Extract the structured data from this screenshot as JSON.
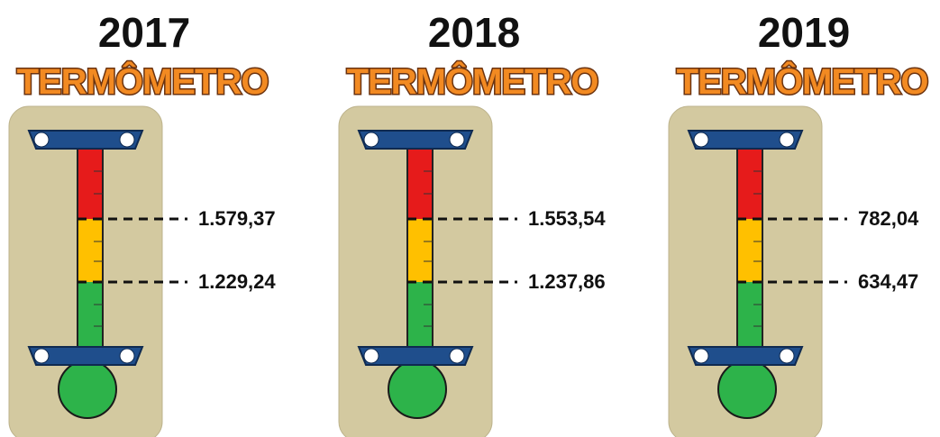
{
  "panels": [
    {
      "year": "2017",
      "title": "TERMÔMETRO",
      "upper": "1.579,37",
      "lower": "1.229,24"
    },
    {
      "year": "2018",
      "title": "TERMÔMETRO",
      "upper": "1.553,54",
      "lower": "1.237,86"
    },
    {
      "year": "2019",
      "title": "TERMÔMETRO",
      "upper": "782,04",
      "lower": "634,47"
    }
  ]
}
